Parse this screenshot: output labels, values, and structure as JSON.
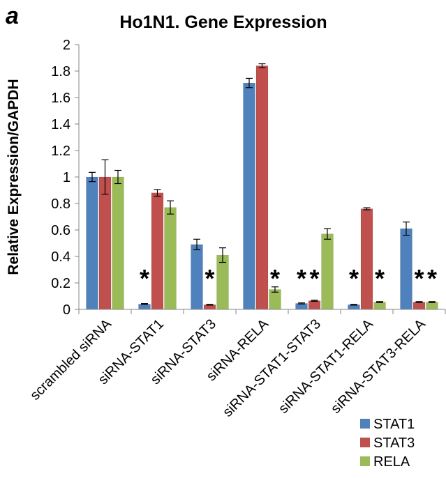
{
  "panel_letter": "a",
  "chart_data": {
    "type": "bar",
    "title": "Ho1N1. Gene Expression",
    "xlabel": "",
    "ylabel": "Relative Expression/GAPDH",
    "ylim": [
      0,
      2
    ],
    "yticks": [
      "0",
      "0.2",
      "0.4",
      "0.6",
      "0.8",
      "1",
      "1.2",
      "1.4",
      "1.6",
      "1.8",
      "2"
    ],
    "grid": false,
    "legend_position": "bottom-right",
    "categories": [
      "scrambled siRNA",
      "siRNA-STAT1",
      "siRNA-STAT3",
      "siRNA-RELA",
      "siRNA-STAT1-STAT3",
      "siRNA-STAT1-RELA",
      "siRNA-STAT3-RELA"
    ],
    "series": [
      {
        "name": "STAT1",
        "color": "#4F81BD",
        "values": [
          1.0,
          0.04,
          0.49,
          1.71,
          0.045,
          0.035,
          0.61
        ],
        "errors": [
          0.035,
          0.004,
          0.04,
          0.035,
          0.004,
          0.003,
          0.05
        ]
      },
      {
        "name": "STAT3",
        "color": "#C0504D",
        "values": [
          1.0,
          0.88,
          0.035,
          1.84,
          0.065,
          0.76,
          0.055
        ],
        "errors": [
          0.13,
          0.025,
          0.003,
          0.015,
          0.004,
          0.008,
          0.004
        ]
      },
      {
        "name": "RELA",
        "color": "#9BBB59",
        "values": [
          1.0,
          0.77,
          0.41,
          0.15,
          0.57,
          0.055,
          0.055
        ],
        "errors": [
          0.05,
          0.05,
          0.055,
          0.02,
          0.04,
          0.004,
          0.004
        ]
      }
    ],
    "annotations": [
      {
        "text": "*",
        "category": 1,
        "series": 0
      },
      {
        "text": "*",
        "category": 2,
        "series": 1
      },
      {
        "text": "*",
        "category": 3,
        "series": 2
      },
      {
        "text": "*",
        "category": 4,
        "series": 0
      },
      {
        "text": "*",
        "category": 4,
        "series": 1
      },
      {
        "text": "*",
        "category": 5,
        "series": 0
      },
      {
        "text": "*",
        "category": 5,
        "series": 2
      },
      {
        "text": "*",
        "category": 6,
        "series": 1
      },
      {
        "text": "*",
        "category": 6,
        "series": 2
      }
    ]
  }
}
